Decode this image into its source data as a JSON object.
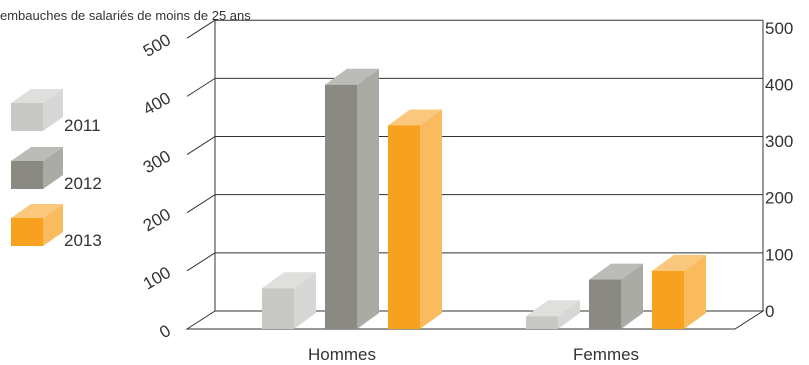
{
  "chart_data": {
    "type": "bar",
    "title": "embauches de salariés de moins de 25 ans",
    "categories": [
      "Hommes",
      "Femmes"
    ],
    "series": [
      {
        "name": "2011",
        "values": [
          70,
          22
        ],
        "color": "#c8c8c4"
      },
      {
        "name": "2012",
        "values": [
          420,
          85
        ],
        "color": "#8a8a82"
      },
      {
        "name": "2013",
        "values": [
          350,
          100
        ],
        "color": "#f7a11e"
      }
    ],
    "ylim": [
      0,
      500
    ],
    "yticks_left": [
      "0",
      "100",
      "200",
      "300",
      "400",
      "500"
    ],
    "yticks_right": [
      "0",
      "100",
      "200",
      "300",
      "400",
      "500"
    ],
    "legend_position": "left",
    "grid": true
  }
}
